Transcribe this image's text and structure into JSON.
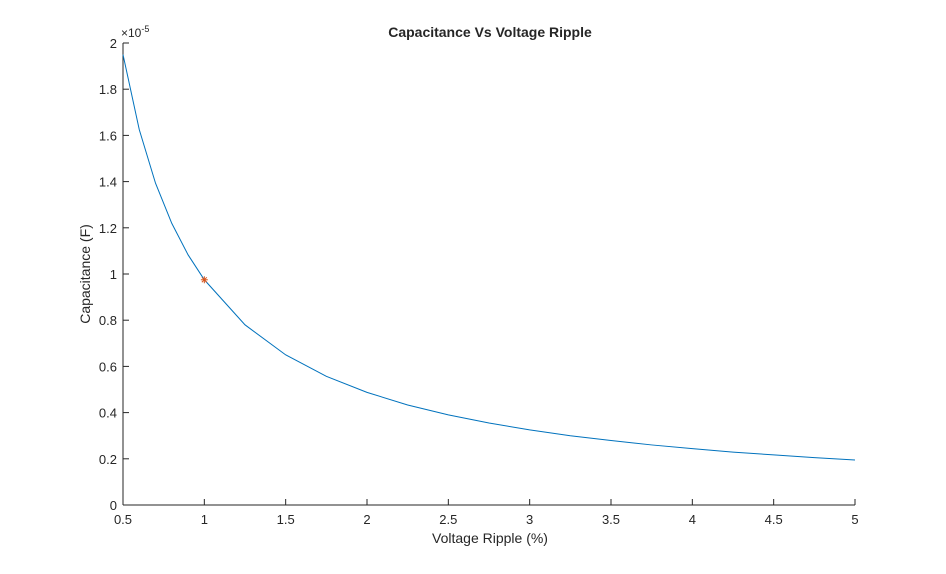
{
  "chart_data": {
    "type": "line",
    "title": "Capacitance Vs Voltage Ripple",
    "xlabel": "Voltage Ripple (%)",
    "ylabel": "Capacitance (F)",
    "y_exponent_base": "×10",
    "y_exponent_power": "-5",
    "y_multiplier": 1e-05,
    "xlim": [
      0.5,
      5
    ],
    "ylim": [
      0,
      2
    ],
    "xticks": [
      0.5,
      1,
      1.5,
      2,
      2.5,
      3,
      3.5,
      4,
      4.5,
      5
    ],
    "xtick_labels": [
      "0.5",
      "1",
      "1.5",
      "2",
      "2.5",
      "3",
      "3.5",
      "4",
      "4.5",
      "5"
    ],
    "yticks": [
      0,
      0.2,
      0.4,
      0.6,
      0.8,
      1,
      1.2,
      1.4,
      1.6,
      1.8,
      2
    ],
    "ytick_labels": [
      "0",
      "0.2",
      "0.4",
      "0.6",
      "0.8",
      "1",
      "1.2",
      "1.4",
      "1.6",
      "1.8",
      "2"
    ],
    "grid": false,
    "series": [
      {
        "color": "#0072BD",
        "x": [
          0.5,
          0.6,
          0.7,
          0.8,
          0.9,
          1.0,
          1.25,
          1.5,
          1.75,
          2.0,
          2.25,
          2.5,
          2.75,
          3.0,
          3.25,
          3.5,
          3.75,
          4.0,
          4.25,
          4.5,
          4.75,
          5.0
        ],
        "y": [
          1.95,
          1.625,
          1.393,
          1.219,
          1.083,
          0.975,
          0.78,
          0.65,
          0.557,
          0.4875,
          0.433,
          0.39,
          0.355,
          0.325,
          0.3,
          0.279,
          0.26,
          0.244,
          0.229,
          0.217,
          0.205,
          0.195
        ]
      }
    ],
    "marker_point": {
      "x": 1.0,
      "y": 0.975,
      "color": "#D95319",
      "marker": "asterisk"
    }
  }
}
